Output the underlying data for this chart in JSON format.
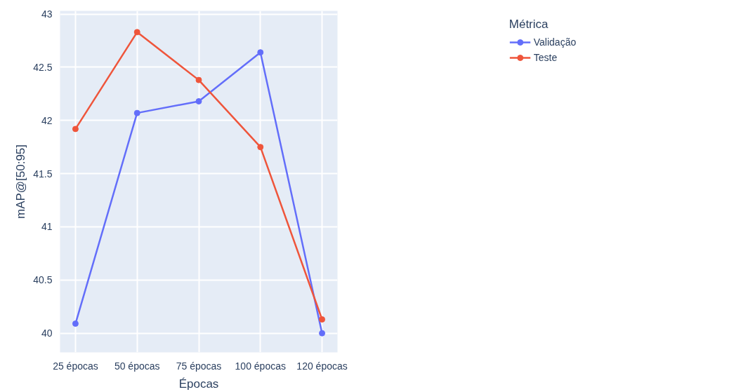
{
  "chart_data": {
    "type": "line",
    "xlabel": "Épocas",
    "ylabel": "mAP@[50:95]",
    "legend_title": "Métrica",
    "categories": [
      "25 épocas",
      "50 épocas",
      "75 épocas",
      "100 épocas",
      "120 épocas"
    ],
    "series": [
      {
        "name": "Validação",
        "color": "#636efa",
        "values": [
          40.09,
          42.07,
          42.18,
          42.64,
          40.0
        ]
      },
      {
        "name": "Teste",
        "color": "#ef553b",
        "values": [
          41.92,
          42.83,
          42.38,
          41.75,
          40.13
        ]
      }
    ],
    "ylim": [
      39.82,
      43.03
    ],
    "yticks": [
      40,
      {
        "value": 40.5,
        "label": "40.5"
      },
      41,
      {
        "value": 41.5,
        "label": "41.5"
      },
      42,
      {
        "value": 42.5,
        "label": "42.5"
      },
      43
    ],
    "grid": true,
    "legend": "top right",
    "marker": "circle",
    "line_style": "solid"
  }
}
